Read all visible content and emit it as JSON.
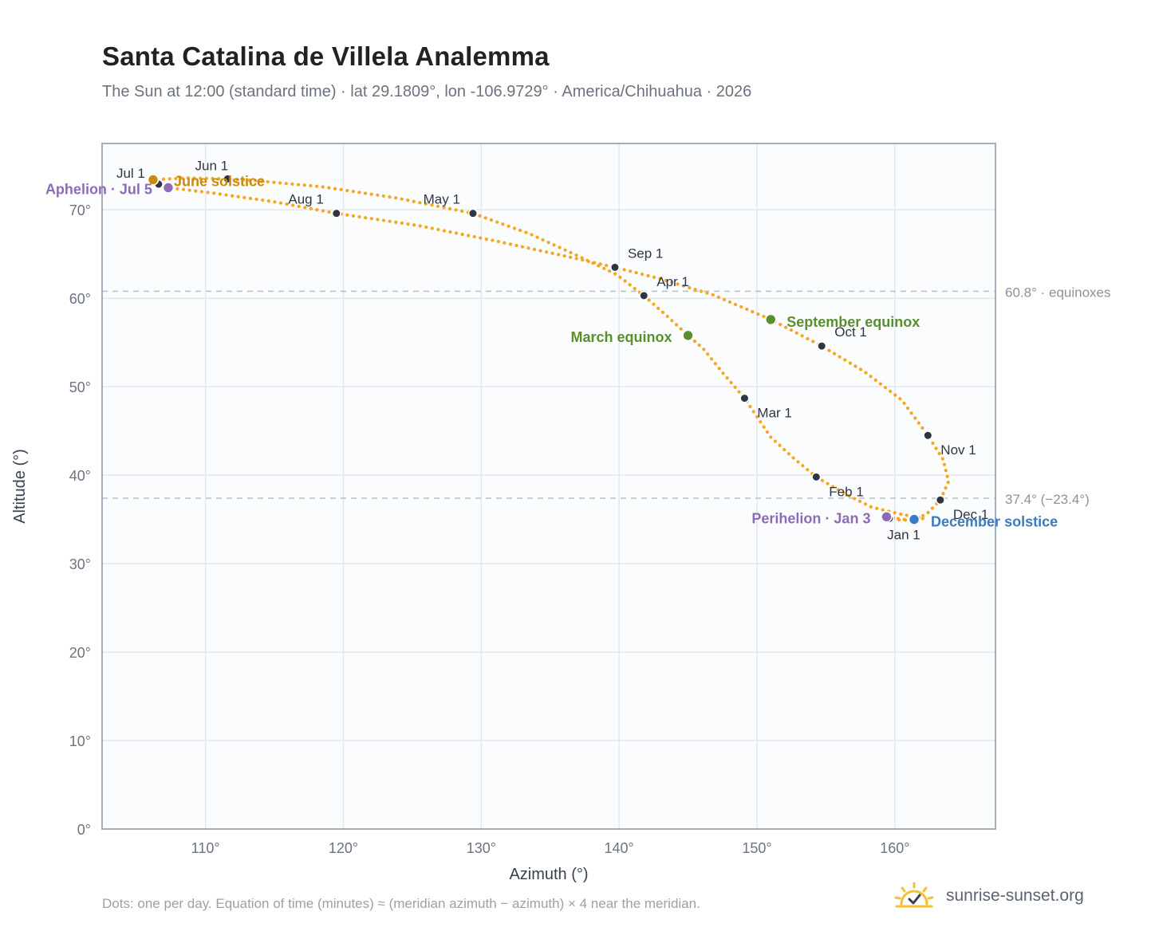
{
  "header": {
    "title": "Santa Catalina de Villela Analemma",
    "subtitle": "The Sun at 12:00 (standard time) · lat 29.1809°, lon -106.9729° · America/Chihuahua · 2026"
  },
  "footnote": "Dots: one per day. Equation of time (minutes) ≈ (meridian azimuth − azimuth) × 4 near the meridian.",
  "brand": {
    "name": "sunrise-sunset.org",
    "icon": "sun-check-icon",
    "color": "#f2c230"
  },
  "chart_data": {
    "type": "scatter",
    "xlabel": "Azimuth (°)",
    "ylabel": "Altitude (°)",
    "xlim": [
      102.5,
      167.3
    ],
    "ylim": [
      0,
      77.5
    ],
    "x_ticks": [
      110,
      120,
      130,
      140,
      150,
      160
    ],
    "y_ticks": [
      0,
      10,
      20,
      30,
      40,
      50,
      60,
      70
    ],
    "tick_suffix": "°",
    "grid": true,
    "colors": {
      "curve": "#f5a623",
      "month_marker": "#2f3542",
      "equinox": "#5a8f2e",
      "june_solstice": "#c8890e",
      "december_solstice": "#3a7abf",
      "apsis": "#8c6bb8",
      "reference_line": "#b5bfcc",
      "plot_background": "#fafcfe",
      "frame": "#9aa5b4"
    },
    "reference_lines": [
      {
        "value": 60.8,
        "label": "60.8° · equinoxes"
      },
      {
        "value": 37.4,
        "label": "37.4° (−23.4°)"
      }
    ],
    "path": [
      [
        159.8,
        35.2
      ],
      [
        160.6,
        35.0
      ],
      [
        161.4,
        35.0
      ],
      [
        162.1,
        35.1
      ],
      [
        160.4,
        35.6
      ],
      [
        158.3,
        36.4
      ],
      [
        156.5,
        37.8
      ],
      [
        154.3,
        39.8
      ],
      [
        152.6,
        42.0
      ],
      [
        151.0,
        44.3
      ],
      [
        149.1,
        48.7
      ],
      [
        147.5,
        51.6
      ],
      [
        146.1,
        54.3
      ],
      [
        145.0,
        55.8
      ],
      [
        143.4,
        58.1
      ],
      [
        141.8,
        60.3
      ],
      [
        139.8,
        62.7
      ],
      [
        137.0,
        64.8
      ],
      [
        133.5,
        67.3
      ],
      [
        129.4,
        69.6
      ],
      [
        124.0,
        71.3
      ],
      [
        118.5,
        72.6
      ],
      [
        113.6,
        73.3
      ],
      [
        111.6,
        73.5
      ],
      [
        108.5,
        73.6
      ],
      [
        106.2,
        73.4
      ],
      [
        106.6,
        72.9
      ],
      [
        107.3,
        72.5
      ],
      [
        110.5,
        71.9
      ],
      [
        115.0,
        70.9
      ],
      [
        119.5,
        69.6
      ],
      [
        125.5,
        68.2
      ],
      [
        131.0,
        66.5
      ],
      [
        136.0,
        64.8
      ],
      [
        139.7,
        63.5
      ],
      [
        143.0,
        62.2
      ],
      [
        146.8,
        60.4
      ],
      [
        151.0,
        57.6
      ],
      [
        154.7,
        54.6
      ],
      [
        157.8,
        51.7
      ],
      [
        160.5,
        48.5
      ],
      [
        162.4,
        44.5
      ],
      [
        163.5,
        41.8
      ],
      [
        163.9,
        39.3
      ],
      [
        163.3,
        37.2
      ],
      [
        162.3,
        35.6
      ],
      [
        161.4,
        35.0
      ],
      [
        160.4,
        34.9
      ],
      [
        159.8,
        35.2
      ]
    ],
    "months": [
      {
        "label": "Jan 1",
        "azimuth": 159.6,
        "altitude": 35.1
      },
      {
        "label": "Feb 1",
        "azimuth": 154.3,
        "altitude": 39.8
      },
      {
        "label": "Mar 1",
        "azimuth": 149.1,
        "altitude": 48.7
      },
      {
        "label": "Apr 1",
        "azimuth": 141.8,
        "altitude": 60.3
      },
      {
        "label": "May 1",
        "azimuth": 129.4,
        "altitude": 69.6
      },
      {
        "label": "Jun 1",
        "azimuth": 111.6,
        "altitude": 73.5
      },
      {
        "label": "Jul 1",
        "azimuth": 106.6,
        "altitude": 72.9
      },
      {
        "label": "Aug 1",
        "azimuth": 119.5,
        "altitude": 69.6
      },
      {
        "label": "Sep 1",
        "azimuth": 139.7,
        "altitude": 63.5
      },
      {
        "label": "Oct 1",
        "azimuth": 154.7,
        "altitude": 54.6
      },
      {
        "label": "Nov 1",
        "azimuth": 162.4,
        "altitude": 44.5
      },
      {
        "label": "Dec 1",
        "azimuth": 163.3,
        "altitude": 37.2
      }
    ],
    "events": [
      {
        "label": "March equinox",
        "azimuth": 145.0,
        "altitude": 55.8,
        "color": "#5a8f2e"
      },
      {
        "label": "September equinox",
        "azimuth": 151.0,
        "altitude": 57.6,
        "color": "#5a8f2e"
      },
      {
        "label": "June solstice",
        "azimuth": 106.2,
        "altitude": 73.4,
        "color": "#c8890e"
      },
      {
        "label": "December solstice",
        "azimuth": 161.4,
        "altitude": 35.0,
        "color": "#3a7abf"
      },
      {
        "label": "Aphelion · Jul 5",
        "azimuth": 107.3,
        "altitude": 72.5,
        "color": "#8c6bb8"
      },
      {
        "label": "Perihelion · Jan 3",
        "azimuth": 159.4,
        "altitude": 35.3,
        "color": "#8c6bb8"
      }
    ]
  }
}
